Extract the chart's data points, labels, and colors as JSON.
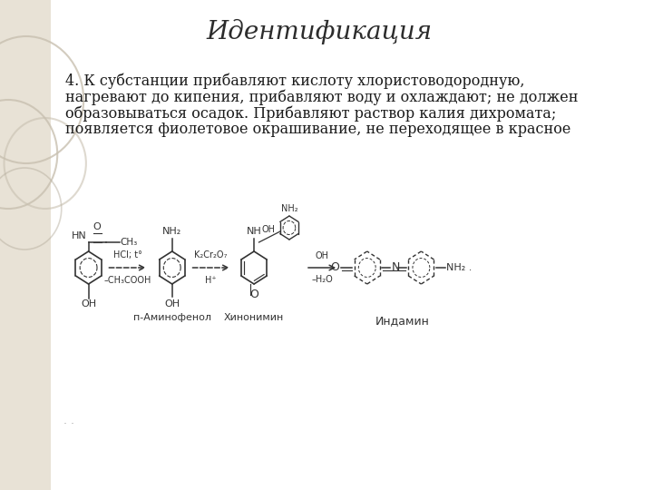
{
  "title": "Идентификация",
  "title_fontsize": 20,
  "title_color": "#2c2c2c",
  "slide_bg": "#ffffff",
  "body_text_line1": "4. К субстанции прибавляют кислоту хлористоводородную,",
  "body_text_line2": "нагревают до кипения, прибавляют воду и охлаждают; не должен",
  "body_text_line3": "образовываться осадок. Прибавляют раствор калия дихромата;",
  "body_text_line4": "появляется фиолетовое окрашивание, не переходящее в красное",
  "body_fontsize": 11.5,
  "body_color": "#1a1a1a",
  "label_p_aminophenol": "п-Аминофенол",
  "label_quinoneimine": "Хинонимин",
  "label_indamine": "Индамин",
  "line_color": "#333333",
  "bg_strip_color": "#e8e2d6",
  "circle_color": "#d8d0c2",
  "dots_color": "#aaaaaa"
}
